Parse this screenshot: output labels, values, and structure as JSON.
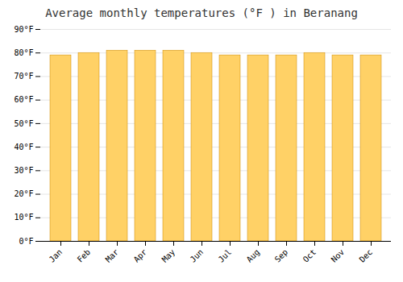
{
  "chart_data": {
    "type": "bar",
    "title": "Average monthly temperatures (°F ) in Beranang",
    "categories": [
      "Jan",
      "Feb",
      "Mar",
      "Apr",
      "May",
      "Jun",
      "Jul",
      "Aug",
      "Sep",
      "Oct",
      "Nov",
      "Dec"
    ],
    "values": [
      79,
      80,
      81,
      81,
      81,
      80,
      79,
      79,
      79,
      80,
      79,
      79
    ],
    "color": "#FFD166",
    "ylim": [
      0,
      90
    ],
    "yticks": [
      {
        "value": 0,
        "label": "0°F"
      },
      {
        "value": 10,
        "label": "10°F"
      },
      {
        "value": 20,
        "label": "20°F"
      },
      {
        "value": 30,
        "label": "30°F"
      },
      {
        "value": 40,
        "label": "40°F"
      },
      {
        "value": 50,
        "label": "50°F"
      },
      {
        "value": 60,
        "label": "60°F"
      },
      {
        "value": 70,
        "label": "70°F"
      },
      {
        "value": 80,
        "label": "80°F"
      },
      {
        "value": 90,
        "label": "90°F"
      }
    ],
    "grid": true
  }
}
